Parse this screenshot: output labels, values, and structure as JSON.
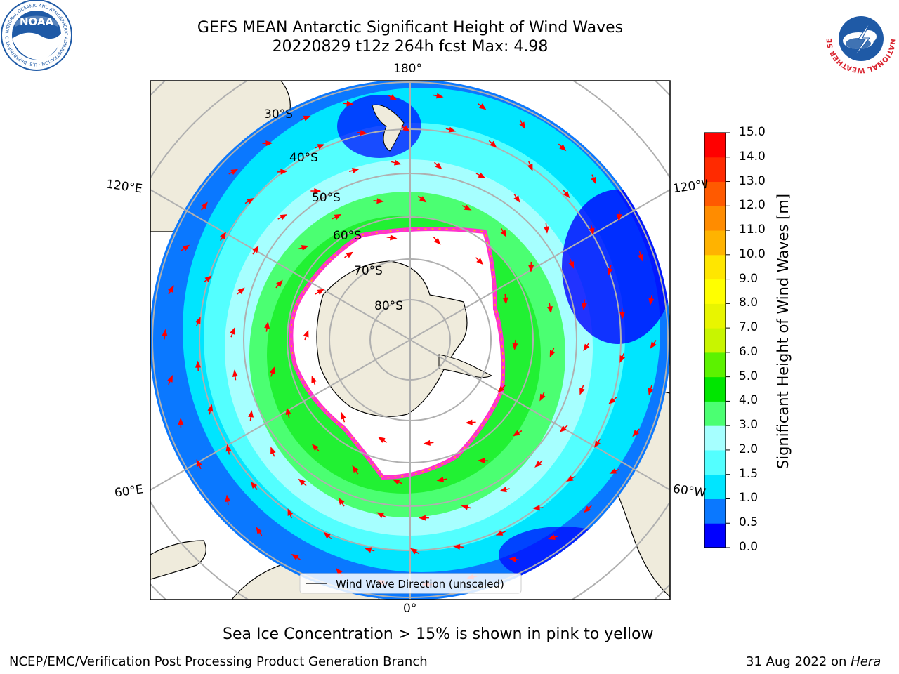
{
  "header": {
    "title_line1": "GEFS MEAN Antarctic Significant Height of Wind Waves",
    "title_line2": "20220829 t12z 264h fcst   Max: 4.98"
  },
  "logos": {
    "left": {
      "name": "noaa-logo",
      "text": "NOAA",
      "ring_text": "NATIONAL OCEANIC AND ATMOSPHERIC ADMINISTRATION · U.S. DEPARTMENT OF COMMERCE",
      "color": "#1f5aa6"
    },
    "right": {
      "name": "nws-logo",
      "ring_text": "NATIONAL WEATHER SERVICE",
      "color": "#d9232e"
    }
  },
  "map": {
    "projection": "south-polar-stereographic",
    "lon_labels": {
      "top": "180°",
      "bottom": "0°",
      "upper_left": "120°E",
      "upper_right": "120°W",
      "lower_left": "60°E",
      "lower_right": "60°W"
    },
    "lat_labels": [
      "30°S",
      "40°S",
      "50°S",
      "60°S",
      "70°S",
      "80°S"
    ],
    "legend_label": "Wind Wave Direction (unscaled)",
    "land_color": "#efebdc",
    "arrow_color": "#ff0000"
  },
  "colorbar": {
    "label": "Significant Height of Wind Waves [m]",
    "ticks": [
      "0.0",
      "0.5",
      "1.0",
      "1.5",
      "2.0",
      "3.0",
      "4.0",
      "5.0",
      "6.0",
      "7.0",
      "8.0",
      "9.0",
      "10.0",
      "11.0",
      "12.0",
      "13.0",
      "14.0",
      "15.0"
    ],
    "colors": [
      "#0000ff",
      "#0a78ff",
      "#00e5ff",
      "#53ffff",
      "#a6ffff",
      "#4bff72",
      "#00e600",
      "#5cf200",
      "#c8f500",
      "#e8f500",
      "#ffff00",
      "#ffe600",
      "#ffb300",
      "#ff8c00",
      "#ff5a00",
      "#ff2a00",
      "#ff0000"
    ]
  },
  "caption": "Sea Ice Concentration > 15% is shown in pink to yellow",
  "footer": {
    "left": "NCEP/EMC/Verification Post Processing Product Generation Branch",
    "right_date": "31 Aug 2022 on",
    "right_host": "Hera"
  }
}
